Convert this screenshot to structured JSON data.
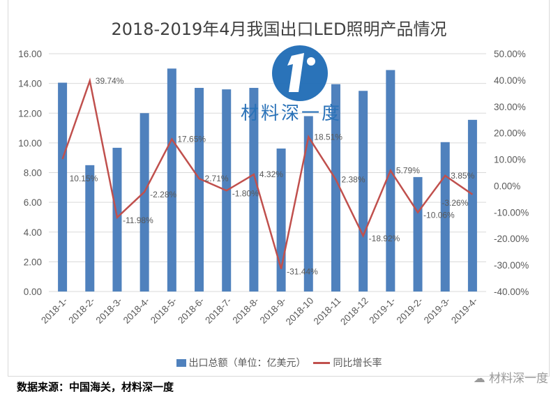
{
  "chart_data": {
    "type": "bar+line",
    "title": "2018-2019年4月我国出口LED照明产品情况",
    "categories": [
      "2018-1-",
      "2018-2-",
      "2018-3-",
      "2018-4-",
      "2018-5-",
      "2018-6-",
      "2018-7-",
      "2018-8-",
      "2018-9-",
      "2018-10",
      "2018-11",
      "2018-12",
      "2019-1-",
      "2019-2-",
      "2019-3-",
      "2019-4-"
    ],
    "series": [
      {
        "name": "出口总额（单位：亿美元）",
        "type": "bar",
        "axis": "left",
        "color": "#4f81bd",
        "values": [
          14.05,
          8.5,
          9.67,
          12.0,
          15.0,
          13.7,
          13.6,
          13.7,
          9.62,
          11.8,
          13.95,
          13.5,
          14.9,
          7.7,
          10.05,
          11.55
        ]
      },
      {
        "name": "同比增长率",
        "type": "line",
        "axis": "right",
        "color": "#c0504d",
        "values": [
          10.15,
          39.74,
          -11.98,
          -2.28,
          17.65,
          2.71,
          -1.8,
          4.32,
          -31.44,
          18.51,
          2.38,
          -18.92,
          5.79,
          -10.06,
          3.85,
          -3.26
        ],
        "labels": [
          "10.15%",
          "39.74%",
          "-11.98%",
          "-2.28%",
          "17.65%",
          "2.71%",
          "-1.80%",
          "4.32%",
          "-31.44%",
          "18.51%",
          "2.38%",
          "-18.92%",
          "5.79%",
          "-10.06%",
          "3.85%",
          "-3.26%"
        ]
      }
    ],
    "ylim_left": [
      0,
      16
    ],
    "yticks_left": [
      "0.00",
      "2.00",
      "4.00",
      "6.00",
      "8.00",
      "10.00",
      "12.00",
      "14.00",
      "16.00"
    ],
    "ylim_right": [
      -40,
      50
    ],
    "yticks_right": [
      "-40.00%",
      "-30.00%",
      "-20.00%",
      "-10.00%",
      "0.00%",
      "10.00%",
      "20.00%",
      "30.00%",
      "40.00%",
      "50.00%"
    ],
    "grid": true,
    "legend_position": "bottom"
  },
  "legend": {
    "bar": "出口总额（单位：亿美元）",
    "line": "同比增长率"
  },
  "source": "数据来源：中国海关，材料深一度",
  "watermark": {
    "logo_text": "材料深一度",
    "wechat_text": "材料深一度"
  }
}
